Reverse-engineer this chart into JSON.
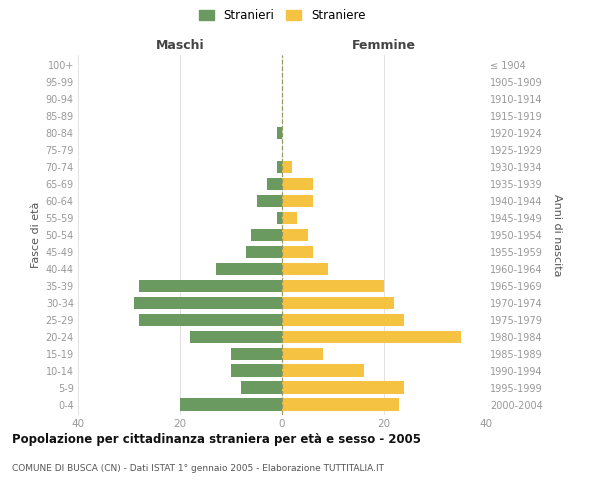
{
  "age_groups": [
    "0-4",
    "5-9",
    "10-14",
    "15-19",
    "20-24",
    "25-29",
    "30-34",
    "35-39",
    "40-44",
    "45-49",
    "50-54",
    "55-59",
    "60-64",
    "65-69",
    "70-74",
    "75-79",
    "80-84",
    "85-89",
    "90-94",
    "95-99",
    "100+"
  ],
  "birth_years": [
    "2000-2004",
    "1995-1999",
    "1990-1994",
    "1985-1989",
    "1980-1984",
    "1975-1979",
    "1970-1974",
    "1965-1969",
    "1960-1964",
    "1955-1959",
    "1950-1954",
    "1945-1949",
    "1940-1944",
    "1935-1939",
    "1930-1934",
    "1925-1929",
    "1920-1924",
    "1915-1919",
    "1910-1914",
    "1905-1909",
    "≤ 1904"
  ],
  "maschi": [
    20,
    8,
    10,
    10,
    18,
    28,
    29,
    28,
    13,
    7,
    6,
    1,
    5,
    3,
    1,
    0,
    1,
    0,
    0,
    0,
    0
  ],
  "femmine": [
    23,
    24,
    16,
    8,
    35,
    24,
    22,
    20,
    9,
    6,
    5,
    3,
    6,
    6,
    2,
    0,
    0,
    0,
    0,
    0,
    0
  ],
  "color_maschi": "#6a9a5f",
  "color_femmine": "#f5c242",
  "title": "Popolazione per cittadinanza straniera per età e sesso - 2005",
  "subtitle": "COMUNE DI BUSCA (CN) - Dati ISTAT 1° gennaio 2005 - Elaborazione TUTTITALIA.IT",
  "label_maschi": "Maschi",
  "label_femmine": "Femmine",
  "ylabel_left": "Fasce di età",
  "ylabel_right": "Anni di nascita",
  "xlim": 40,
  "legend_stranieri": "Stranieri",
  "legend_straniere": "Straniere",
  "background_color": "#ffffff",
  "grid_color": "#dddddd"
}
